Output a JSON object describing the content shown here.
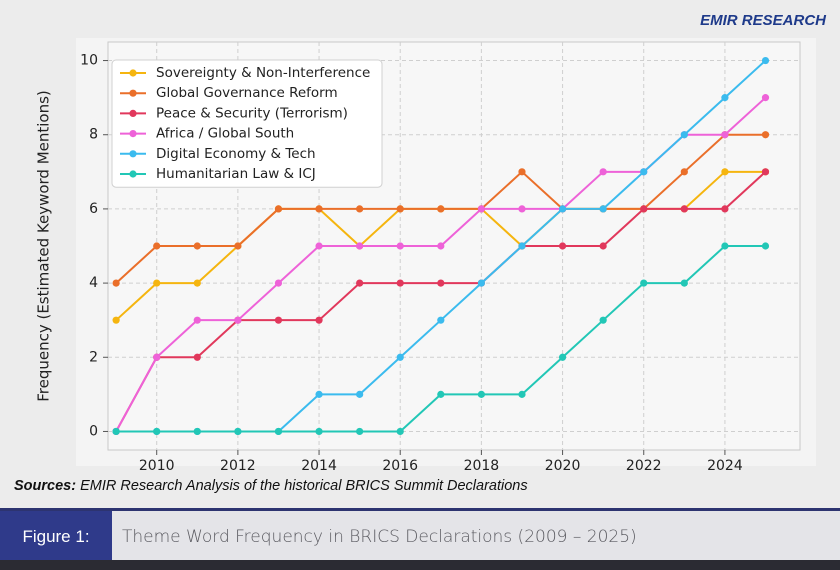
{
  "logo": "EMIR RESEARCH",
  "sources": {
    "label": "Sources:",
    "text": "EMIR Research Analysis of the historical BRICS Summit Declarations"
  },
  "figure": {
    "label": "Figure 1:",
    "caption": "Theme Word Frequency in BRICS Declarations (2009 – 2025)"
  },
  "chart_data": {
    "type": "line",
    "y_label": "Frequency (Estimated Keyword Mentions)",
    "x": [
      2009,
      2010,
      2011,
      2012,
      2013,
      2014,
      2015,
      2016,
      2017,
      2018,
      2019,
      2020,
      2021,
      2022,
      2023,
      2024,
      2025
    ],
    "series": [
      {
        "name": "Sovereignty & Non-Interference",
        "color": "#f5b50f",
        "values": [
          3,
          4,
          4,
          5,
          6,
          6,
          5,
          6,
          6,
          6,
          5,
          6,
          6,
          6,
          6,
          7,
          7
        ]
      },
      {
        "name": "Global Governance Reform",
        "color": "#ea6f2a",
        "values": [
          4,
          5,
          5,
          5,
          6,
          6,
          6,
          6,
          6,
          6,
          7,
          6,
          6,
          6,
          7,
          8,
          8
        ]
      },
      {
        "name": "Peace & Security (Terrorism)",
        "color": "#e1385c",
        "values": [
          0,
          2,
          2,
          3,
          3,
          3,
          4,
          4,
          4,
          4,
          5,
          5,
          5,
          6,
          6,
          6,
          7
        ]
      },
      {
        "name": "Africa / Global South",
        "color": "#ee62d8",
        "values": [
          0,
          2,
          3,
          3,
          4,
          5,
          5,
          5,
          5,
          6,
          6,
          6,
          7,
          7,
          8,
          8,
          9
        ]
      },
      {
        "name": "Digital Economy & Tech",
        "color": "#3bbbee",
        "values": [
          0,
          0,
          0,
          0,
          0,
          1,
          1,
          2,
          3,
          4,
          5,
          6,
          6,
          7,
          8,
          9,
          10
        ]
      },
      {
        "name": "Humanitarian Law & ICJ",
        "color": "#22c7b6",
        "values": [
          0,
          0,
          0,
          0,
          0,
          0,
          0,
          0,
          1,
          1,
          1,
          2,
          3,
          4,
          4,
          5,
          5
        ]
      }
    ],
    "xlim": [
      2008.8,
      2025.85
    ],
    "ylim": [
      -0.5,
      10.5
    ],
    "xticks": [
      2010,
      2012,
      2014,
      2016,
      2018,
      2020,
      2022,
      2024
    ],
    "yticks": [
      0,
      2,
      4,
      6,
      8,
      10
    ],
    "grid": true,
    "legend": "upper-left"
  }
}
